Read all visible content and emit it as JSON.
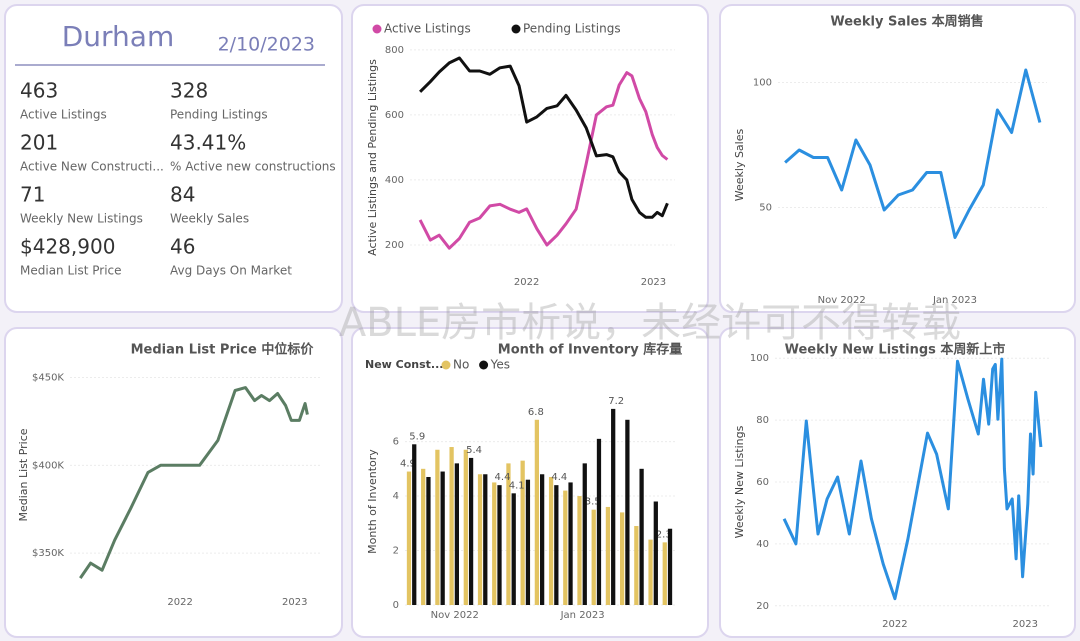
{
  "kpi": {
    "title": "Durham",
    "date": "2/10/2023",
    "items": [
      {
        "value": "463",
        "label": "Active Listings"
      },
      {
        "value": "328",
        "label": "Pending Listings"
      },
      {
        "value": "201",
        "label": "Active New Constructi..."
      },
      {
        "value": "43.41%",
        "label": "% Active new constructions"
      },
      {
        "value": "71",
        "label": "Weekly New Listings"
      },
      {
        "value": "84",
        "label": "Weekly Sales"
      },
      {
        "value": "$428,900",
        "label": "Median List Price"
      },
      {
        "value": "46",
        "label": "Avg Days On Market"
      }
    ]
  },
  "watermark": "ABLE房市析说，未经许可不得转载",
  "chart_data": [
    {
      "type": "line",
      "ylabel": "Active Listings and Pending Listings",
      "legend": "top-left",
      "grid": true,
      "x": [
        2021.16,
        2021.24,
        2021.31,
        2021.39,
        2021.47,
        2021.55,
        2021.63,
        2021.71,
        2021.79,
        2021.87,
        2021.94,
        2022.0,
        2022.08,
        2022.16,
        2022.24,
        2022.31,
        2022.39,
        2022.47,
        2022.55,
        2022.63,
        2022.68,
        2022.73,
        2022.79,
        2022.83,
        2022.89,
        2022.94,
        2022.99,
        2023.03,
        2023.07,
        2023.11
      ],
      "xlim": [
        2021.08,
        2023.17
      ],
      "xticks": [
        2022,
        2023
      ],
      "ylim": [
        123,
        815
      ],
      "yticks": [
        200,
        400,
        600,
        800
      ],
      "series": [
        {
          "name": "Active Listings",
          "color": "#d14aa6",
          "values": [
            277,
            215,
            230,
            190,
            220,
            270,
            283,
            320,
            325,
            310,
            300,
            311,
            250,
            200,
            230,
            265,
            310,
            450,
            600,
            625,
            630,
            692,
            730,
            720,
            650,
            610,
            540,
            500,
            475,
            463
          ]
        },
        {
          "name": "Pending Listings",
          "color": "#111111",
          "values": [
            671,
            702,
            732,
            760,
            775,
            735,
            735,
            725,
            745,
            750,
            690,
            578,
            594,
            620,
            628,
            660,
            615,
            560,
            474,
            478,
            471,
            425,
            400,
            340,
            300,
            285,
            285,
            300,
            290,
            328
          ]
        }
      ]
    },
    {
      "type": "line",
      "title": "Weekly Sales 本周销售",
      "ylabel": "Weekly Sales",
      "grid": true,
      "categories": [
        null,
        null,
        null,
        null,
        "Nov 2022",
        null,
        null,
        null,
        null,
        null,
        null,
        null,
        "Jan 2023",
        null,
        null,
        null,
        null,
        null,
        null
      ],
      "ylim": [
        17,
        117
      ],
      "yticks": [
        50,
        100
      ],
      "series": [
        {
          "name": "Weekly Sales",
          "color": "#2b8fe0",
          "values": [
            68,
            73,
            70,
            70,
            57,
            77,
            67,
            49,
            55,
            57,
            64,
            64,
            38,
            49,
            59,
            89,
            80,
            105,
            84
          ]
        }
      ]
    },
    {
      "type": "line",
      "title": "Median List Price 中位标价",
      "ylabel": "Median List Price",
      "grid": true,
      "x": [
        2021.13,
        2021.22,
        2021.32,
        2021.43,
        2021.57,
        2021.72,
        2021.83,
        2022.0,
        2022.17,
        2022.33,
        2022.48,
        2022.57,
        2022.65,
        2022.71,
        2022.78,
        2022.85,
        2022.92,
        2022.97,
        2023.04,
        2023.09,
        2023.11
      ],
      "xlim": [
        2021.04,
        2023.22
      ],
      "xticks": [
        2022,
        2023
      ],
      "ylim": [
        329000,
        460000
      ],
      "yticks": [
        {
          "value": 350000,
          "label": "$350K"
        },
        {
          "value": 400000,
          "label": "$400K"
        },
        {
          "value": 450000,
          "label": "$450K"
        }
      ],
      "series": [
        {
          "name": "Median List Price",
          "color": "#5b7d63",
          "values": [
            335800,
            344300,
            340300,
            357400,
            375600,
            396000,
            400000,
            400000,
            400000,
            414200,
            442600,
            444300,
            436900,
            439800,
            436900,
            440900,
            434100,
            425600,
            425600,
            435200,
            428900
          ]
        }
      ]
    },
    {
      "type": "bar",
      "title": "Month of Inventory 库存量",
      "ylabel": "Month of Inventory",
      "legend_title": "New Const...",
      "legend": "top-left",
      "grid": true,
      "categories": [
        null,
        null,
        null,
        "Nov 2022",
        null,
        null,
        null,
        null,
        null,
        null,
        null,
        null,
        "Jan 2023",
        null,
        null,
        null,
        null,
        null,
        null
      ],
      "ylim": [
        0,
        7.6
      ],
      "yticks": [
        0,
        2,
        4,
        6
      ],
      "series": [
        {
          "name": "No",
          "color": "#e3c462",
          "values": [
            4.9,
            5.0,
            5.7,
            5.8,
            5.7,
            4.8,
            4.5,
            5.2,
            5.3,
            6.8,
            4.7,
            4.2,
            4.0,
            3.5,
            3.6,
            3.4,
            2.9,
            2.4,
            2.3
          ],
          "value_labels": [
            "4.9",
            null,
            null,
            null,
            null,
            null,
            null,
            null,
            null,
            "6.8",
            null,
            null,
            null,
            "3.5",
            null,
            null,
            null,
            null,
            "2.3"
          ]
        },
        {
          "name": "Yes",
          "color": "#111111",
          "values": [
            5.9,
            4.7,
            4.9,
            5.2,
            5.4,
            4.8,
            4.4,
            4.1,
            4.6,
            4.8,
            4.4,
            4.5,
            5.2,
            6.1,
            7.2,
            6.8,
            5.0,
            3.8,
            2.8
          ],
          "value_labels": [
            "5.9",
            null,
            null,
            null,
            "5.4",
            null,
            "4.4",
            "4.1",
            null,
            null,
            "4.4",
            null,
            null,
            null,
            "7.2",
            null,
            null,
            null,
            null
          ]
        }
      ]
    },
    {
      "type": "line",
      "title": "Weekly New Listings 本周新上市",
      "ylabel": "Weekly New Listings",
      "grid": true,
      "x": [
        2021.15,
        2021.24,
        2021.32,
        2021.41,
        2021.48,
        2021.56,
        2021.65,
        2021.74,
        2021.82,
        2021.91,
        2022.0,
        2022.1,
        2022.25,
        2022.32,
        2022.41,
        2022.48,
        2022.56,
        2022.64,
        2022.68,
        2022.72,
        2022.75,
        2022.77,
        2022.79,
        2022.82,
        2022.84,
        2022.86,
        2022.9,
        2022.93,
        2022.95,
        2022.98,
        2023.02,
        2023.04,
        2023.06,
        2023.08,
        2023.12
      ],
      "xlim": [
        2021.08,
        2023.19
      ],
      "xticks": [
        2022,
        2023
      ],
      "ylim": [
        18,
        102
      ],
      "yticks": [
        20,
        40,
        60,
        80,
        100
      ],
      "series": [
        {
          "name": "Weekly New Listings",
          "color": "#2b8fe0",
          "values": [
            48.1,
            40,
            79.7,
            43.2,
            54.5,
            61.6,
            43.2,
            66.8,
            48.1,
            33.5,
            22.3,
            41.6,
            75.8,
            69,
            51.3,
            99,
            86.8,
            75.5,
            93.2,
            78.7,
            96.5,
            98,
            80.3,
            99.7,
            64.2,
            51.3,
            54.5,
            35.2,
            55.5,
            29.4,
            52.9,
            75.5,
            62.6,
            89,
            71.3
          ]
        }
      ]
    }
  ]
}
